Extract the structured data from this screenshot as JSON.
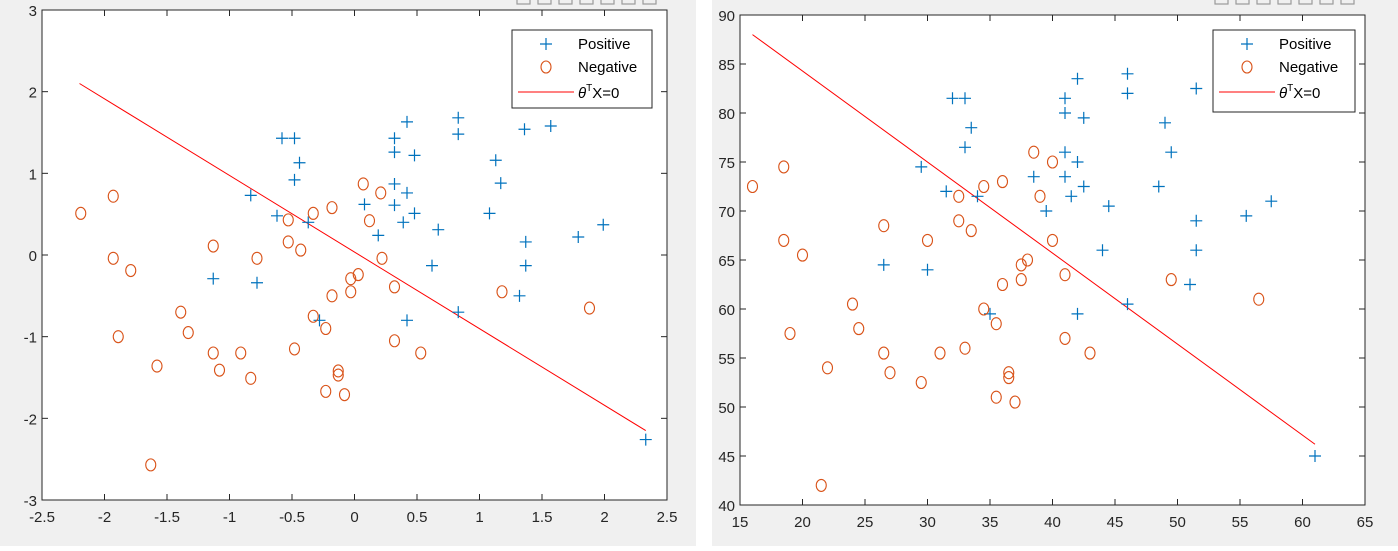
{
  "colors": {
    "positive": "#0072BD",
    "negative": "#D95319",
    "boundary": "#FF0000",
    "axis": "#262626"
  },
  "legend": {
    "positive": "Positive",
    "negative": "Negative",
    "boundary_prefix": "θ",
    "boundary_sup": "T",
    "boundary_suffix": "X=0"
  },
  "chart_data": [
    {
      "type": "scatter",
      "title": "",
      "xlabel": "",
      "ylabel": "",
      "xlim": [
        -2.5,
        2.5
      ],
      "ylim": [
        -3,
        3
      ],
      "xticks": [
        "-2.5",
        "-2",
        "-1.5",
        "-1",
        "-0.5",
        "0",
        "0.5",
        "1",
        "1.5",
        "2",
        "2.5"
      ],
      "yticks": [
        "-3",
        "-2",
        "-1",
        "0",
        "1",
        "2",
        "3"
      ],
      "legend_position": "top-right",
      "series": [
        {
          "name": "Positive",
          "marker": "+",
          "points": [
            [
              -0.58,
              1.43
            ],
            [
              -0.48,
              1.43
            ],
            [
              -0.44,
              1.13
            ],
            [
              -0.48,
              0.92
            ],
            [
              -0.83,
              0.73
            ],
            [
              -0.62,
              0.48
            ],
            [
              -0.37,
              0.4
            ],
            [
              -1.13,
              -0.29
            ],
            [
              -0.78,
              -0.34
            ],
            [
              -0.28,
              -0.8
            ],
            [
              0.42,
              1.63
            ],
            [
              0.32,
              1.43
            ],
            [
              0.32,
              1.26
            ],
            [
              0.48,
              1.22
            ],
            [
              0.83,
              1.68
            ],
            [
              0.83,
              1.48
            ],
            [
              1.36,
              1.54
            ],
            [
              1.57,
              1.58
            ],
            [
              1.13,
              1.16
            ],
            [
              1.17,
              0.88
            ],
            [
              0.32,
              0.87
            ],
            [
              0.42,
              0.76
            ],
            [
              0.08,
              0.62
            ],
            [
              0.32,
              0.61
            ],
            [
              0.48,
              0.51
            ],
            [
              0.39,
              0.4
            ],
            [
              0.19,
              0.24
            ],
            [
              0.67,
              0.31
            ],
            [
              1.08,
              0.51
            ],
            [
              0.62,
              -0.13
            ],
            [
              1.37,
              0.16
            ],
            [
              1.37,
              -0.13
            ],
            [
              1.79,
              0.22
            ],
            [
              1.99,
              0.37
            ],
            [
              1.32,
              -0.5
            ],
            [
              0.42,
              -0.8
            ],
            [
              0.83,
              -0.7
            ],
            [
              2.33,
              -2.26
            ]
          ]
        },
        {
          "name": "Negative",
          "marker": "o",
          "points": [
            [
              -2.19,
              0.51
            ],
            [
              -1.93,
              0.72
            ],
            [
              -1.93,
              -0.04
            ],
            [
              -1.79,
              -0.19
            ],
            [
              -1.89,
              -1.0
            ],
            [
              -1.39,
              -0.7
            ],
            [
              -1.33,
              -0.95
            ],
            [
              -1.58,
              -1.36
            ],
            [
              -1.13,
              0.11
            ],
            [
              -1.13,
              -1.2
            ],
            [
              -1.08,
              -1.41
            ],
            [
              -1.63,
              -2.57
            ],
            [
              -0.78,
              -0.04
            ],
            [
              -0.83,
              -1.51
            ],
            [
              -0.91,
              -1.2
            ],
            [
              -0.53,
              0.43
            ],
            [
              -0.53,
              0.16
            ],
            [
              -0.43,
              0.06
            ],
            [
              -0.33,
              0.51
            ],
            [
              -0.18,
              0.58
            ],
            [
              -0.48,
              -1.15
            ],
            [
              -0.33,
              -0.75
            ],
            [
              -0.23,
              -0.9
            ],
            [
              -0.23,
              -1.67
            ],
            [
              -0.13,
              -1.42
            ],
            [
              -0.13,
              -1.47
            ],
            [
              -0.08,
              -1.71
            ],
            [
              -0.18,
              -0.5
            ],
            [
              -0.03,
              -0.29
            ],
            [
              0.03,
              -0.24
            ],
            [
              -0.03,
              -0.45
            ],
            [
              0.07,
              0.87
            ],
            [
              0.21,
              0.76
            ],
            [
              0.12,
              0.42
            ],
            [
              0.22,
              -0.04
            ],
            [
              0.32,
              -0.39
            ],
            [
              0.32,
              -1.05
            ],
            [
              0.53,
              -1.2
            ],
            [
              1.18,
              -0.45
            ],
            [
              1.88,
              -0.65
            ]
          ]
        },
        {
          "name": "θTX=0",
          "type": "line",
          "points": [
            [
              -2.2,
              2.1
            ],
            [
              2.33,
              -2.15
            ]
          ]
        }
      ]
    },
    {
      "type": "scatter",
      "title": "",
      "xlabel": "",
      "ylabel": "",
      "xlim": [
        15,
        65
      ],
      "ylim": [
        40,
        90
      ],
      "xticks": [
        "15",
        "20",
        "25",
        "30",
        "35",
        "40",
        "45",
        "50",
        "55",
        "60",
        "65"
      ],
      "yticks": [
        "40",
        "45",
        "50",
        "55",
        "60",
        "65",
        "70",
        "75",
        "80",
        "85",
        "90"
      ],
      "legend_position": "top-right",
      "series": [
        {
          "name": "Positive",
          "marker": "+",
          "points": [
            [
              32,
              81.5
            ],
            [
              33,
              81.5
            ],
            [
              33.5,
              78.5
            ],
            [
              33,
              76.5
            ],
            [
              29.5,
              74.5
            ],
            [
              31.5,
              72
            ],
            [
              34,
              71.5
            ],
            [
              26.5,
              64.5
            ],
            [
              30,
              64
            ],
            [
              35,
              59.5
            ],
            [
              42,
              83.5
            ],
            [
              41,
              81.5
            ],
            [
              41,
              80
            ],
            [
              42.5,
              79.5
            ],
            [
              46,
              84
            ],
            [
              46,
              82
            ],
            [
              51.5,
              82.5
            ],
            [
              49,
              79
            ],
            [
              49.5,
              76
            ],
            [
              41,
              76
            ],
            [
              42,
              75
            ],
            [
              38.5,
              73.5
            ],
            [
              41,
              73.5
            ],
            [
              42.5,
              72.5
            ],
            [
              41.5,
              71.5
            ],
            [
              39.5,
              70
            ],
            [
              44.5,
              70.5
            ],
            [
              48.5,
              72.5
            ],
            [
              57.5,
              71
            ],
            [
              55.5,
              69.5
            ],
            [
              51.5,
              69
            ],
            [
              44,
              66
            ],
            [
              51.5,
              66
            ],
            [
              51,
              62.5
            ],
            [
              46,
              60.5
            ],
            [
              42,
              59.5
            ],
            [
              61,
              45
            ]
          ]
        },
        {
          "name": "Negative",
          "marker": "o",
          "points": [
            [
              16,
              72.5
            ],
            [
              18.5,
              74.5
            ],
            [
              18.5,
              67
            ],
            [
              20,
              65.5
            ],
            [
              19,
              57.5
            ],
            [
              22,
              54
            ],
            [
              21.5,
              42
            ],
            [
              24,
              60.5
            ],
            [
              24.5,
              58
            ],
            [
              26.5,
              68.5
            ],
            [
              26.5,
              55.5
            ],
            [
              27,
              53.5
            ],
            [
              29.5,
              52.5
            ],
            [
              30,
              67
            ],
            [
              31,
              55.5
            ],
            [
              32.5,
              71.5
            ],
            [
              32.5,
              69
            ],
            [
              33.5,
              68
            ],
            [
              33,
              56
            ],
            [
              34.5,
              72.5
            ],
            [
              36,
              73
            ],
            [
              34.5,
              60
            ],
            [
              35.5,
              58.5
            ],
            [
              36,
              62.5
            ],
            [
              35.5,
              51
            ],
            [
              36.5,
              53.5
            ],
            [
              36.5,
              53
            ],
            [
              37,
              50.5
            ],
            [
              37.5,
              64.5
            ],
            [
              38,
              65
            ],
            [
              37.5,
              63
            ],
            [
              38.5,
              76
            ],
            [
              40,
              75
            ],
            [
              39,
              71.5
            ],
            [
              40,
              67
            ],
            [
              41,
              63.5
            ],
            [
              41,
              57
            ],
            [
              43,
              55.5
            ],
            [
              49.5,
              63
            ],
            [
              56.5,
              61
            ]
          ]
        },
        {
          "name": "θTX=0",
          "type": "line",
          "points": [
            [
              16,
              88
            ],
            [
              61,
              46.2
            ]
          ]
        }
      ]
    }
  ]
}
